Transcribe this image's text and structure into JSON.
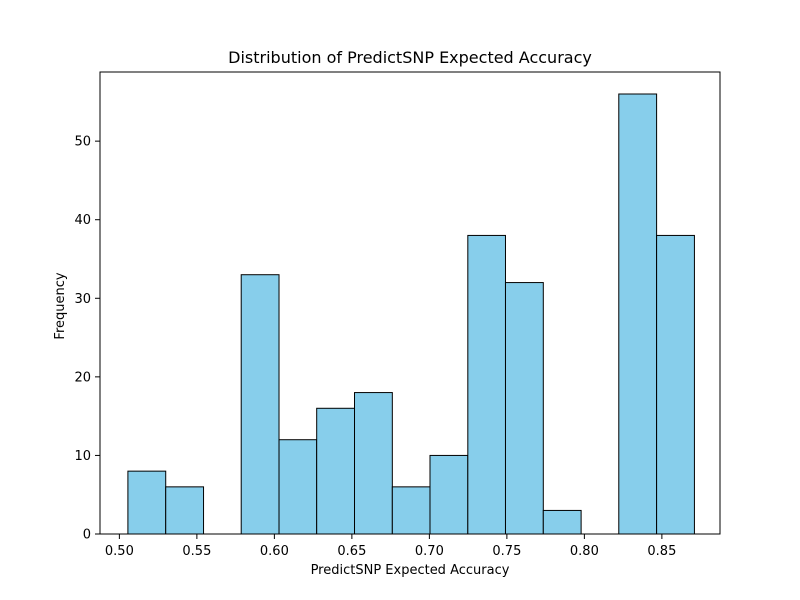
{
  "chart_data": {
    "type": "bar",
    "title": "Distribution of PredictSNP Expected Accuracy",
    "xlabel": "PredictSNP Expected Accuracy",
    "ylabel": "Frequency",
    "xlim": [
      0.4875,
      0.8875
    ],
    "ylim": [
      0,
      58.8
    ],
    "xticks": [
      0.5,
      0.55,
      0.6,
      0.65,
      0.7,
      0.75,
      0.8,
      0.85
    ],
    "xtick_labels": [
      "0.50",
      "0.55",
      "0.60",
      "0.65",
      "0.70",
      "0.75",
      "0.80",
      "0.85"
    ],
    "yticks": [
      0,
      10,
      20,
      30,
      40,
      50
    ],
    "ytick_labels": [
      "0",
      "10",
      "20",
      "30",
      "40",
      "50"
    ],
    "bins": [
      {
        "x0": 0.5055,
        "x1": 0.5299,
        "value": 8
      },
      {
        "x0": 0.5299,
        "x1": 0.5543,
        "value": 6
      },
      {
        "x0": 0.5543,
        "x1": 0.5786,
        "value": 0
      },
      {
        "x0": 0.5786,
        "x1": 0.603,
        "value": 33
      },
      {
        "x0": 0.603,
        "x1": 0.6273,
        "value": 12
      },
      {
        "x0": 0.6273,
        "x1": 0.6517,
        "value": 16
      },
      {
        "x0": 0.6517,
        "x1": 0.6761,
        "value": 18
      },
      {
        "x0": 0.6761,
        "x1": 0.7004,
        "value": 6
      },
      {
        "x0": 0.7004,
        "x1": 0.7248,
        "value": 10
      },
      {
        "x0": 0.7248,
        "x1": 0.7491,
        "value": 38
      },
      {
        "x0": 0.7491,
        "x1": 0.7735,
        "value": 32
      },
      {
        "x0": 0.7735,
        "x1": 0.7979,
        "value": 3
      },
      {
        "x0": 0.7979,
        "x1": 0.8222,
        "value": 0
      },
      {
        "x0": 0.8222,
        "x1": 0.8466,
        "value": 56
      },
      {
        "x0": 0.8466,
        "x1": 0.871,
        "value": 38
      }
    ],
    "bar_color": "#87ceeb",
    "edge_color": "#000000",
    "grid": false,
    "legend": "none"
  }
}
